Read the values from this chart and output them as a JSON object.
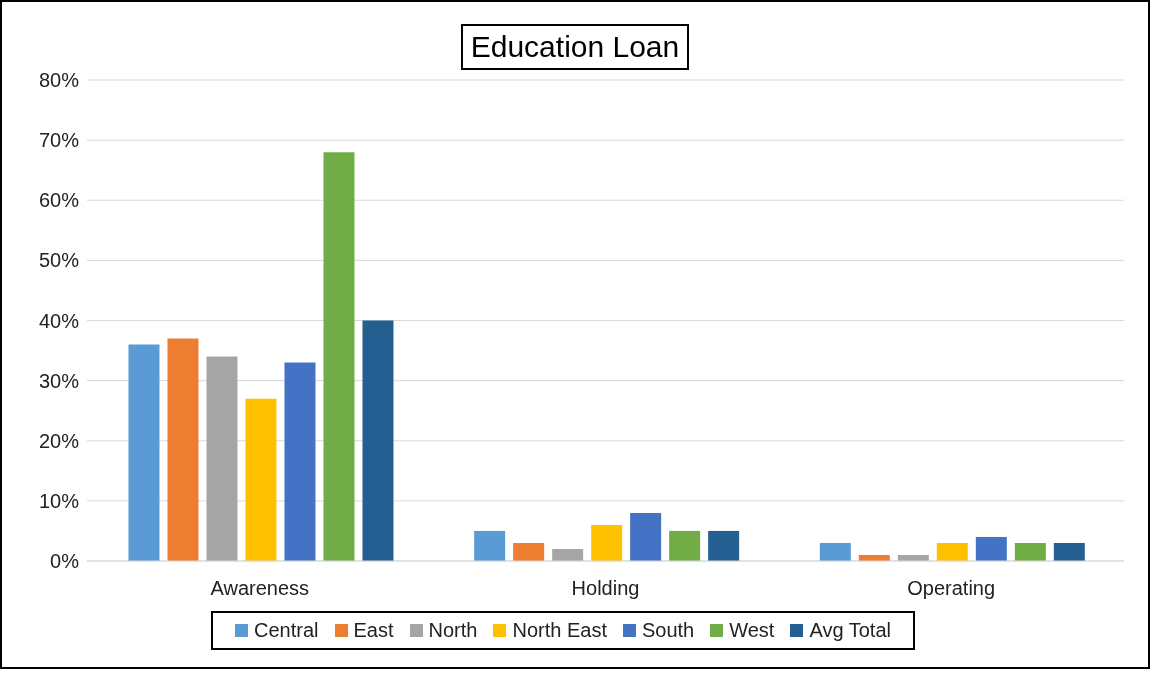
{
  "chart_data": {
    "type": "bar",
    "title": "Education Loan",
    "categories": [
      "Awareness",
      "Holding",
      "Operating"
    ],
    "series": [
      {
        "name": "Central",
        "color": "#5b9bd5",
        "values": [
          36,
          5,
          3
        ]
      },
      {
        "name": "East",
        "color": "#ed7d31",
        "values": [
          37,
          3,
          1
        ]
      },
      {
        "name": "North",
        "color": "#a5a5a5",
        "values": [
          34,
          2,
          1
        ]
      },
      {
        "name": "North East",
        "color": "#ffc000",
        "values": [
          27,
          6,
          3
        ]
      },
      {
        "name": "South",
        "color": "#4472c4",
        "values": [
          33,
          8,
          4
        ]
      },
      {
        "name": "West",
        "color": "#70ad47",
        "values": [
          68,
          5,
          3
        ]
      },
      {
        "name": "Avg Total",
        "color": "#255e91",
        "values": [
          40,
          5,
          3
        ]
      }
    ],
    "ylim": [
      0,
      80
    ],
    "yticks": [
      {
        "value": 0,
        "label": "0%"
      },
      {
        "value": 10,
        "label": "10%"
      },
      {
        "value": 20,
        "label": "20%"
      },
      {
        "value": 30,
        "label": "30%"
      },
      {
        "value": 40,
        "label": "40%"
      },
      {
        "value": 50,
        "label": "50%"
      },
      {
        "value": 60,
        "label": "60%"
      },
      {
        "value": 70,
        "label": "70%"
      },
      {
        "value": 80,
        "label": "80%"
      }
    ],
    "grid": "y",
    "legend": "bottom"
  }
}
